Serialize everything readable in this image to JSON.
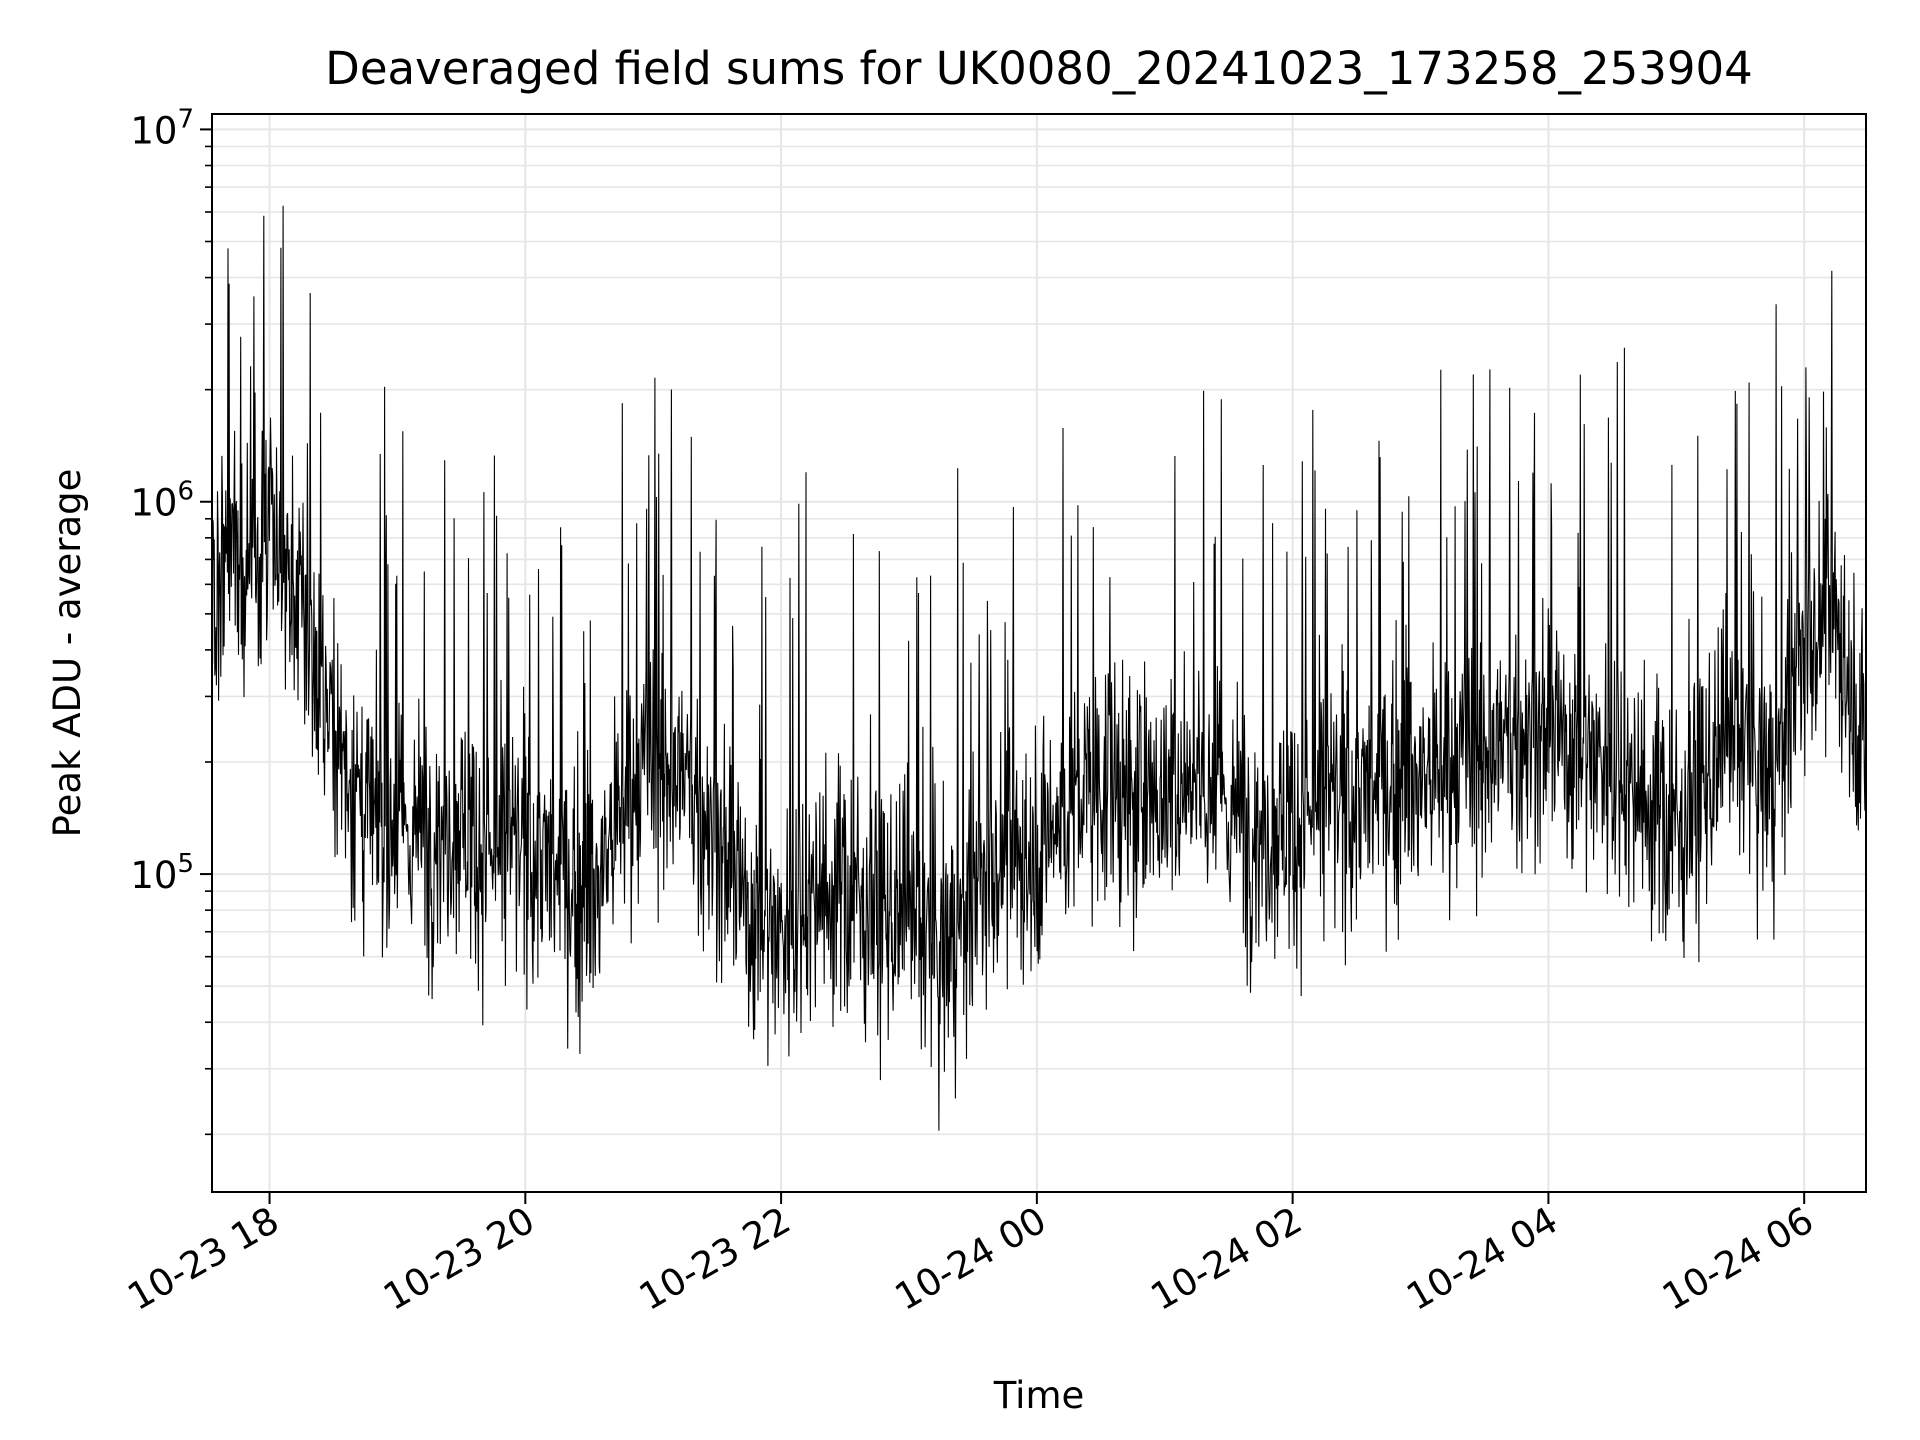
{
  "chart_data": {
    "type": "line",
    "title": "Deaveraged field sums for UK0080_20241023_173258_253904",
    "xlabel": "Time",
    "ylabel": "Peak ADU - average",
    "yscale": "log",
    "ylim": [
      14000,
      11000000
    ],
    "xlim": [
      "2024-10-23 17:33",
      "2024-10-24 06:29"
    ],
    "grid": true,
    "line_color": "#000000",
    "grid_color": "#e6e6e6",
    "x_ticks": [
      {
        "value": "2024-10-23 18:00",
        "label": "10-23 18"
      },
      {
        "value": "2024-10-23 20:00",
        "label": "10-23 20"
      },
      {
        "value": "2024-10-23 22:00",
        "label": "10-23 22"
      },
      {
        "value": "2024-10-24 00:00",
        "label": "10-24 00"
      },
      {
        "value": "2024-10-24 02:00",
        "label": "10-24 02"
      },
      {
        "value": "2024-10-24 04:00",
        "label": "10-24 04"
      },
      {
        "value": "2024-10-24 06:00",
        "label": "10-24 06"
      }
    ],
    "y_ticks": [
      {
        "value": 100000,
        "base": "10",
        "exp": "5"
      },
      {
        "value": 1000000,
        "base": "10",
        "exp": "6"
      },
      {
        "value": 10000000,
        "base": "10",
        "exp": "7"
      }
    ],
    "series": [
      {
        "name": "",
        "x": [
          "2024-10-23 17:33",
          "2024-10-23 17:40",
          "2024-10-23 17:50",
          "2024-10-23 18:00",
          "2024-10-23 18:15",
          "2024-10-23 18:30",
          "2024-10-23 18:45",
          "2024-10-23 19:00",
          "2024-10-23 19:15",
          "2024-10-23 19:30",
          "2024-10-23 19:45",
          "2024-10-23 20:00",
          "2024-10-23 20:15",
          "2024-10-23 20:30",
          "2024-10-23 20:45",
          "2024-10-23 21:00",
          "2024-10-23 21:15",
          "2024-10-23 21:30",
          "2024-10-23 21:45",
          "2024-10-23 22:00",
          "2024-10-23 22:15",
          "2024-10-23 22:30",
          "2024-10-23 22:45",
          "2024-10-23 23:00",
          "2024-10-23 23:15",
          "2024-10-23 23:30",
          "2024-10-23 23:45",
          "2024-10-24 00:00",
          "2024-10-24 00:15",
          "2024-10-24 00:30",
          "2024-10-24 00:45",
          "2024-10-24 01:00",
          "2024-10-24 01:15",
          "2024-10-24 01:30",
          "2024-10-24 01:45",
          "2024-10-24 02:00",
          "2024-10-24 02:15",
          "2024-10-24 02:30",
          "2024-10-24 02:45",
          "2024-10-24 03:00",
          "2024-10-24 03:15",
          "2024-10-24 03:30",
          "2024-10-24 03:45",
          "2024-10-24 04:00",
          "2024-10-24 04:15",
          "2024-10-24 04:30",
          "2024-10-24 04:45",
          "2024-10-24 05:00",
          "2024-10-24 05:15",
          "2024-10-24 05:30",
          "2024-10-24 05:45",
          "2024-10-24 06:00",
          "2024-10-24 06:15",
          "2024-10-24 06:29"
        ],
        "y": [
          450000,
          700000,
          650000,
          850000,
          500000,
          250000,
          140000,
          130000,
          130000,
          140000,
          110000,
          120000,
          100000,
          80000,
          150000,
          200000,
          180000,
          120000,
          80000,
          70000,
          90000,
          90000,
          80000,
          70000,
          60000,
          85000,
          110000,
          120000,
          150000,
          180000,
          150000,
          170000,
          190000,
          150000,
          130000,
          140000,
          150000,
          160000,
          170000,
          180000,
          190000,
          210000,
          230000,
          240000,
          220000,
          200000,
          160000,
          130000,
          180000,
          220000,
          180000,
          400000,
          500000,
          220000
        ]
      }
    ]
  }
}
